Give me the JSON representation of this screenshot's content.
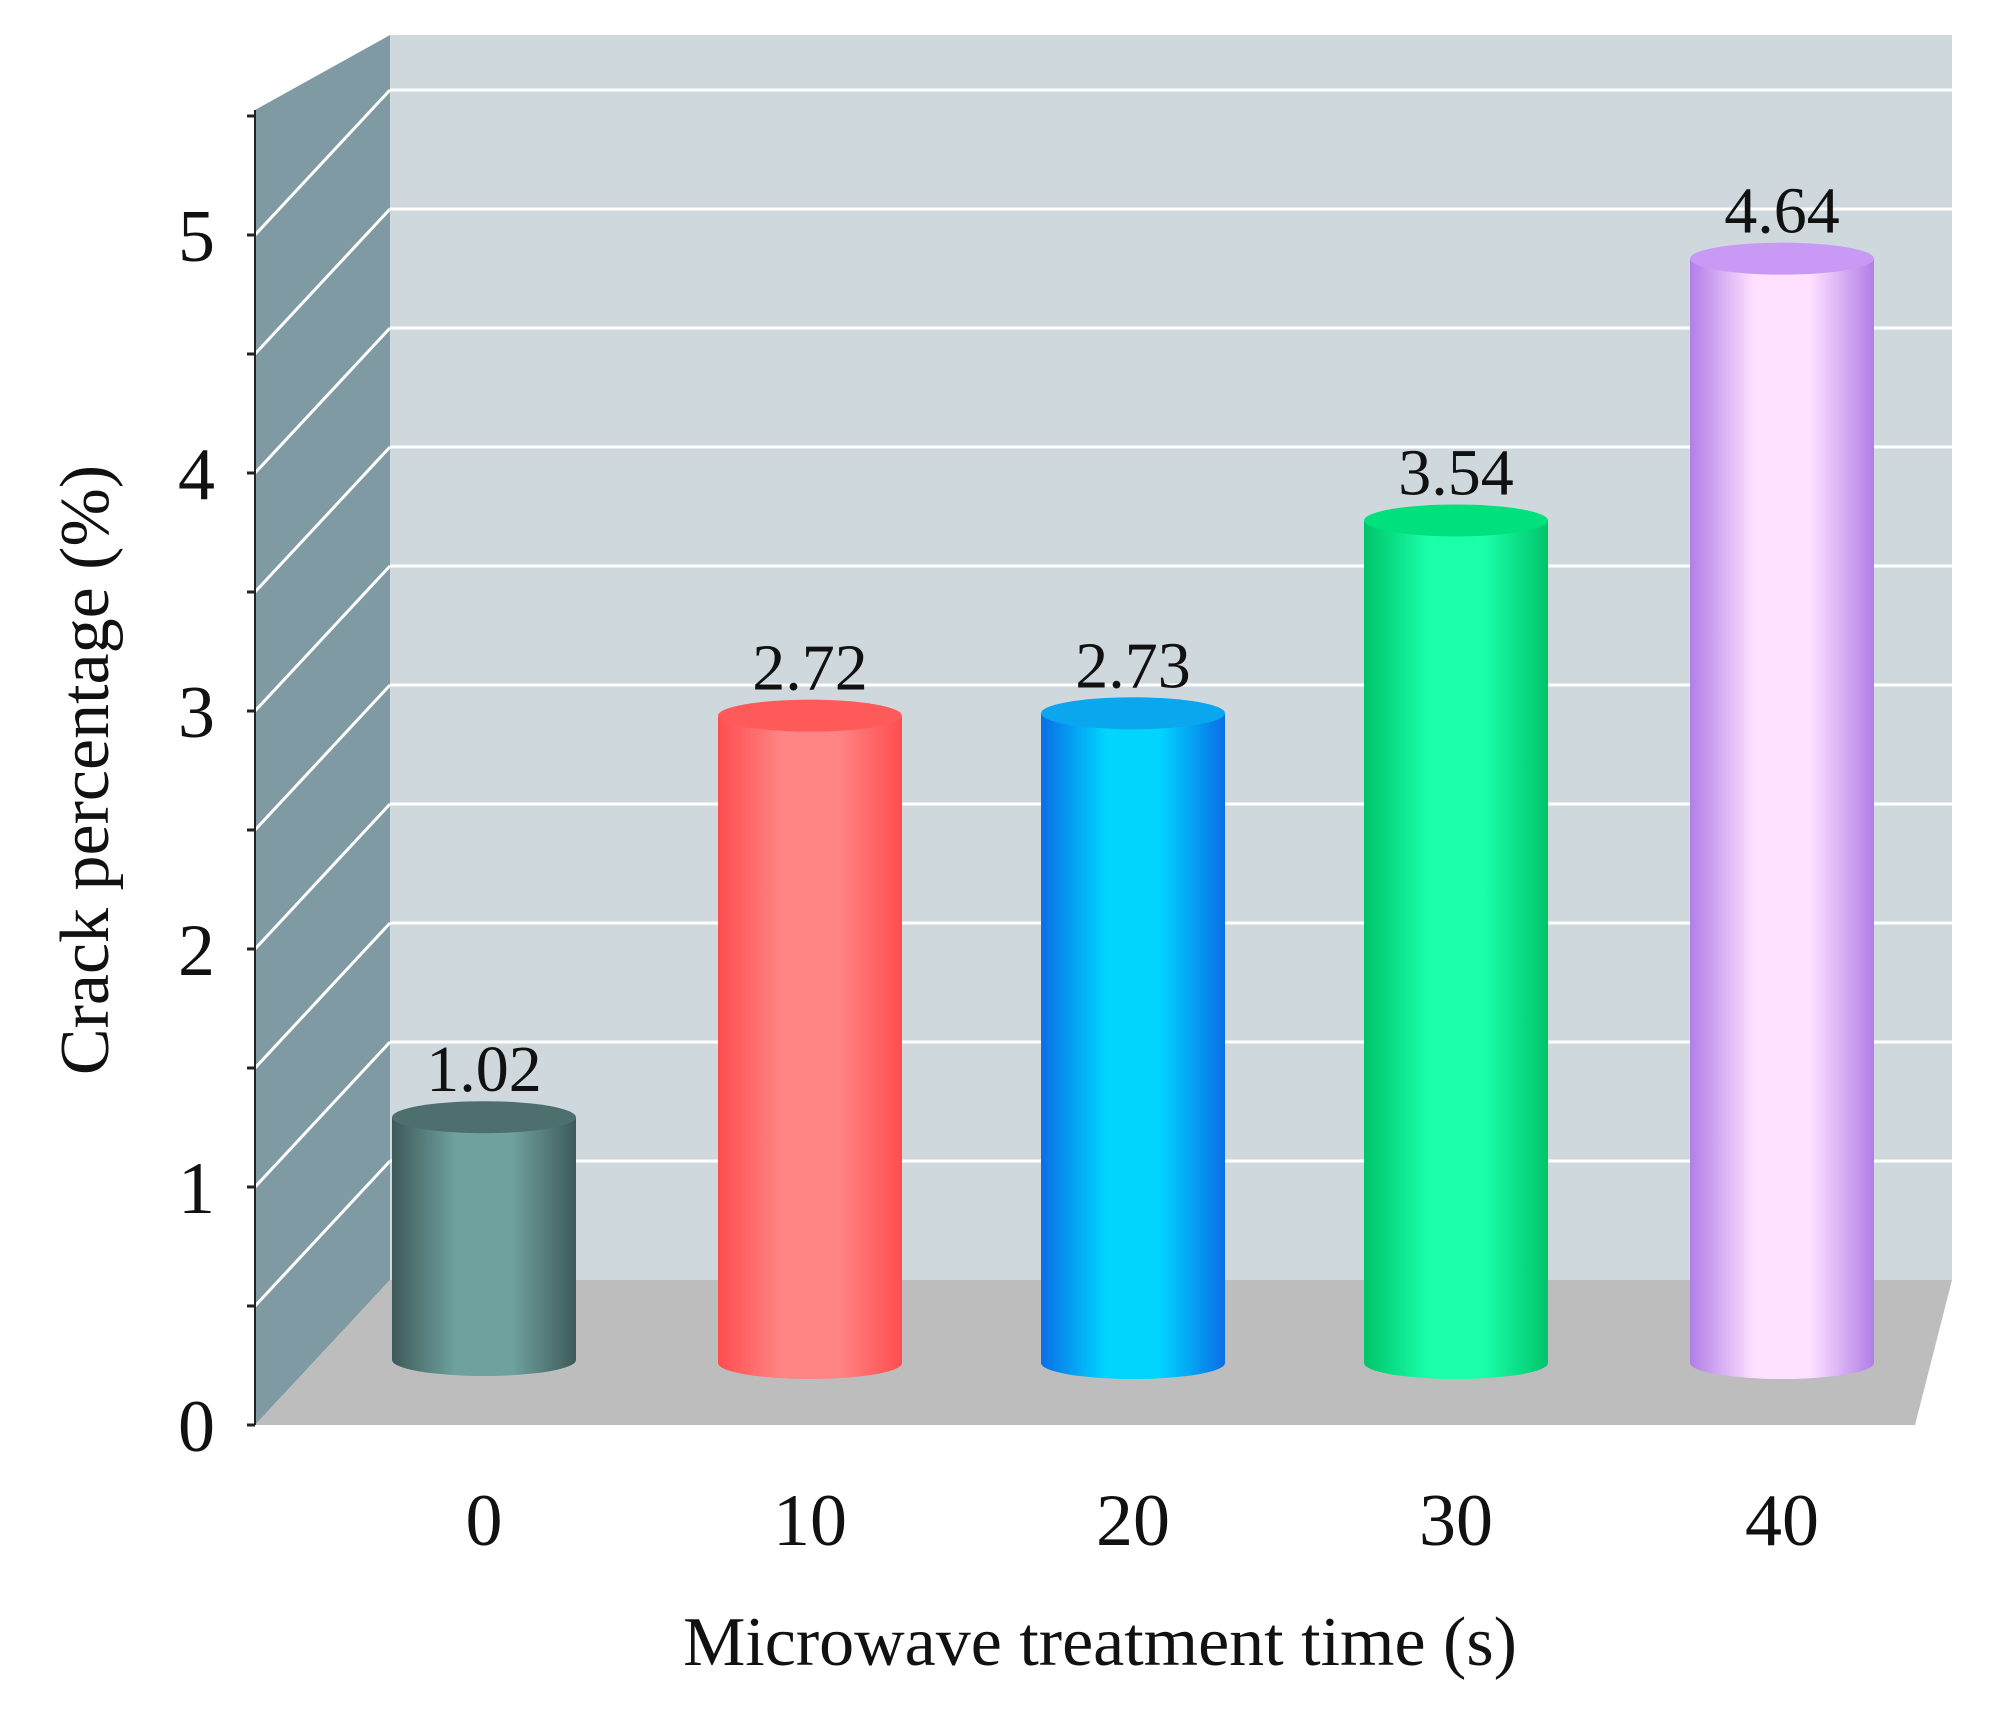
{
  "chart_data": {
    "type": "bar",
    "style": "3d-cylinder",
    "title": "",
    "xlabel": "Microwave treatment time (s)",
    "ylabel": "Crack percentage (%)",
    "categories": [
      "0",
      "10",
      "20",
      "30",
      "40"
    ],
    "values": [
      1.02,
      2.72,
      2.73,
      3.54,
      4.64
    ],
    "value_labels": [
      "1.02",
      "2.72",
      "2.73",
      "3.54",
      "4.64"
    ],
    "ylim": [
      0,
      5.5
    ],
    "yticks": [
      "0",
      "1",
      "2",
      "3",
      "4",
      "5"
    ],
    "grid": true,
    "legend": "none"
  },
  "colors": {
    "back_wall": "#cfd8dc",
    "side_wall": "#7f9aa2",
    "floor": "#bdbdbd",
    "gridline": "#ffffff",
    "text": "#111111",
    "bars": [
      {
        "dark": "#3e5a5a",
        "light": "#6fa29f",
        "top": "#4d6f6d"
      },
      {
        "dark": "#ff4d4f",
        "light": "#ff8585",
        "top": "#ff5a5a"
      },
      {
        "dark": "#0a6ee6",
        "light": "#00d4ff",
        "top": "#0aa6ee"
      },
      {
        "dark": "#00c46a",
        "light": "#1affaa",
        "top": "#00e07c"
      },
      {
        "dark": "#b07ee8",
        "light": "#ffe1ff",
        "top": "#c99af5"
      }
    ]
  }
}
